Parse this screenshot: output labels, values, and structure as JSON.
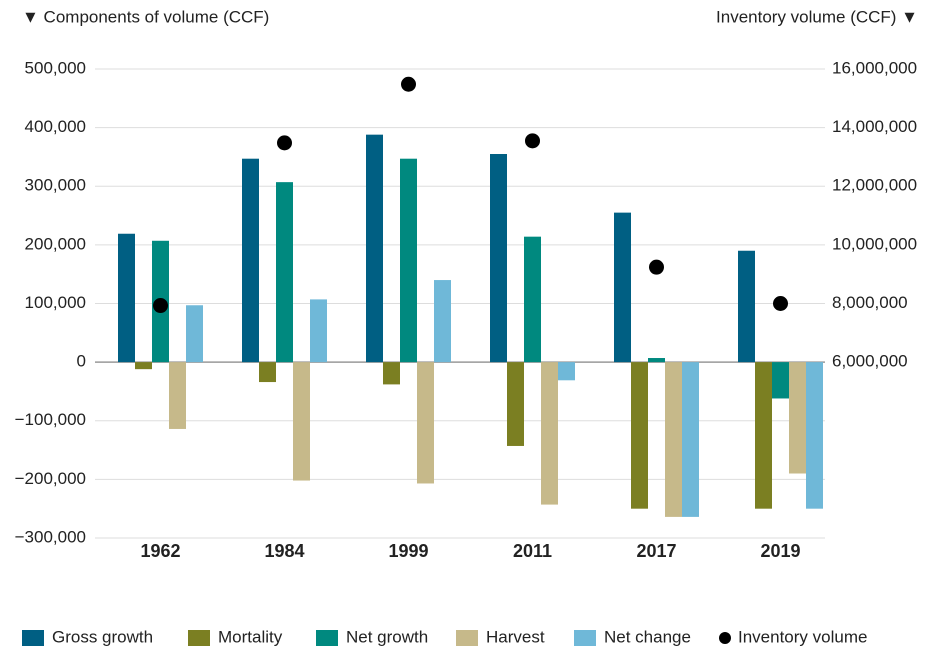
{
  "chart_data": {
    "type": "bar",
    "y_label": "▼ Components of volume (CCF)",
    "y2_label": "Inventory volume (CCF) ▼",
    "categories": [
      "1962",
      "1984",
      "1999",
      "2011",
      "2017",
      "2019"
    ],
    "series": [
      {
        "name": "Gross growth",
        "color": "#005f83",
        "values": [
          219000,
          347000,
          388000,
          355000,
          255000,
          190000
        ]
      },
      {
        "name": "Mortality",
        "color": "#7b7f22",
        "values": [
          -12000,
          -34000,
          -38000,
          -143000,
          -250000,
          -250000
        ]
      },
      {
        "name": "Net growth",
        "color": "#00897f",
        "values": [
          207000,
          307000,
          347000,
          214000,
          7000,
          -62000
        ]
      },
      {
        "name": "Harvest",
        "color": "#c6b98a",
        "values": [
          -114000,
          -202000,
          -207000,
          -243000,
          -264000,
          -190000
        ]
      },
      {
        "name": "Net change",
        "color": "#6fb8d8",
        "values": [
          97000,
          107000,
          140000,
          -31000,
          -264000,
          -250000
        ]
      },
      {
        "name": "Inventory volume",
        "color": "#000000",
        "axis": "y2",
        "values": [
          7930000,
          13480000,
          15480000,
          13550000,
          9240000,
          8000000
        ]
      }
    ],
    "ylim": [
      -300000,
      500000
    ],
    "yticks": [
      {
        "value": -300000,
        "label": "−300,000"
      },
      {
        "value": -200000,
        "label": "−200,000"
      },
      {
        "value": -100000,
        "label": "−100,000"
      },
      0,
      {
        "value": 100000,
        "label": "100,000"
      },
      {
        "value": 200000,
        "label": "200,000"
      },
      {
        "value": 300000,
        "label": "300,000"
      },
      {
        "value": 400000,
        "label": "400,000"
      },
      {
        "value": 500000,
        "label": "500,000"
      }
    ],
    "y2lim": [
      0,
      16000000
    ],
    "y2ticks": [
      {
        "value": 6000000,
        "label": "6,000,000"
      },
      {
        "value": 8000000,
        "label": "8,000,000"
      },
      {
        "value": 10000000,
        "label": "10,000,000"
      },
      {
        "value": 12000000,
        "label": "12,000,000"
      },
      {
        "value": 14000000,
        "label": "14,000,000"
      },
      {
        "value": 16000000,
        "label": "16,000,000"
      }
    ],
    "grid": true
  }
}
